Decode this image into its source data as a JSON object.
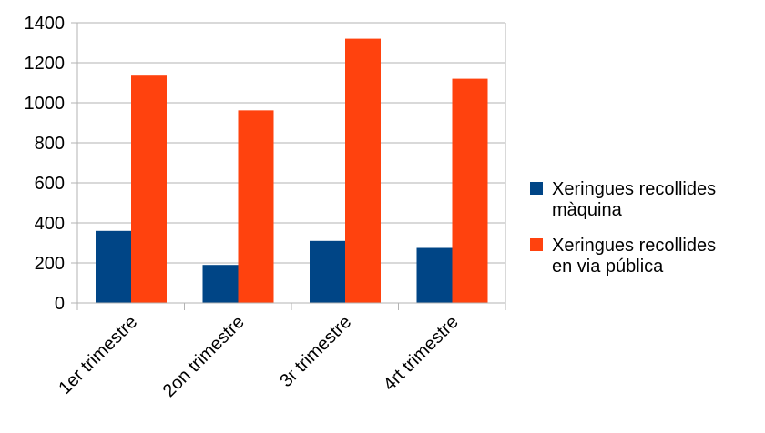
{
  "chart_data": {
    "type": "bar",
    "categories": [
      "1er trimestre",
      "2on trimestre",
      "3r trimestre",
      "4rt trimestre"
    ],
    "series": [
      {
        "name": "Xeringues recollides màquina",
        "name_lines": [
          "Xeringues recollides",
          "màquina"
        ],
        "values": [
          360,
          190,
          310,
          275
        ],
        "color": "#004586"
      },
      {
        "name": "Xeringues recollides en via pública",
        "name_lines": [
          "Xeringues recollides",
          "en via pública"
        ],
        "values": [
          1140,
          962,
          1320,
          1120
        ],
        "color": "#ff420e"
      }
    ],
    "yticks": [
      0,
      200,
      400,
      600,
      800,
      1000,
      1200,
      1400
    ],
    "ylim": [
      0,
      1400
    ],
    "grid": true,
    "legend_position": "right",
    "title": "",
    "xlabel": "",
    "ylabel": ""
  }
}
